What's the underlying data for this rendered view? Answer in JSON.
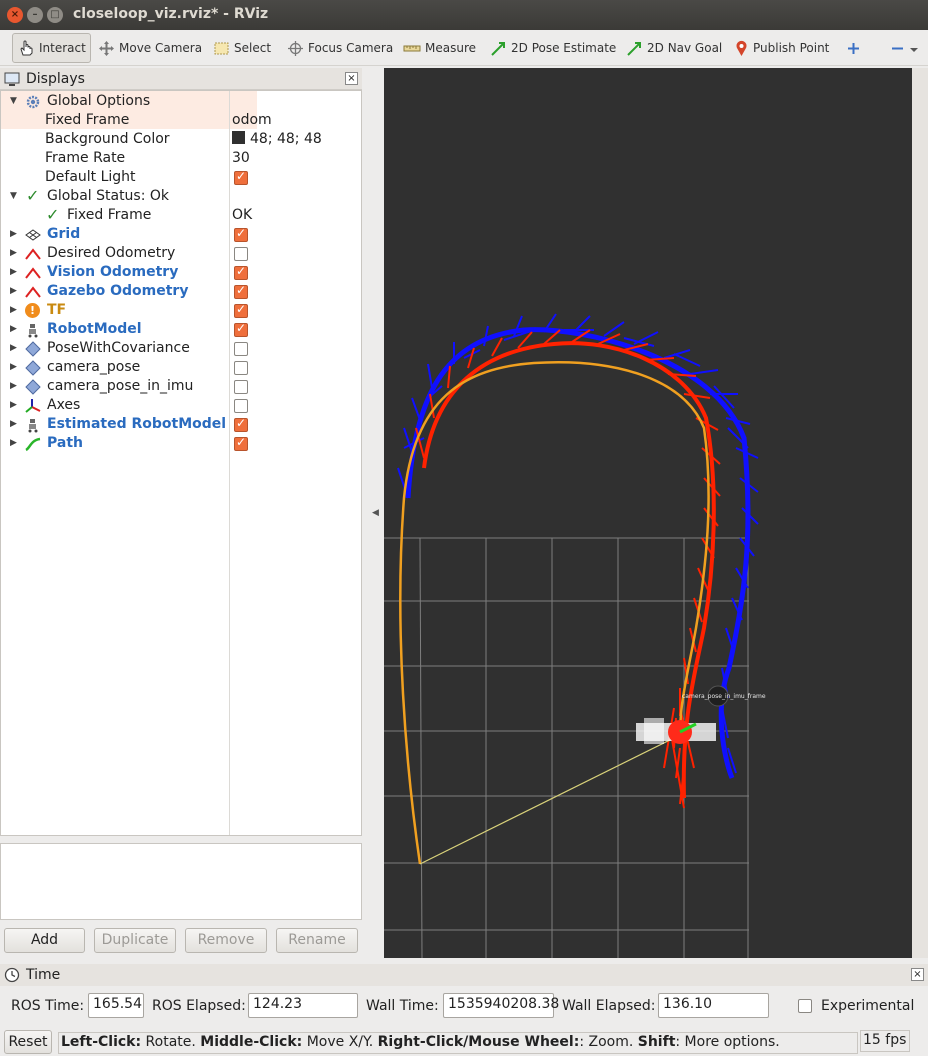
{
  "window": {
    "title": "closeloop_viz.rviz* - RViz"
  },
  "toolbar": {
    "interact": "Interact",
    "move_camera": "Move Camera",
    "select": "Select",
    "focus_camera": "Focus Camera",
    "measure": "Measure",
    "pose_estimate": "2D Pose Estimate",
    "nav_goal": "2D Nav Goal",
    "publish_point": "Publish Point"
  },
  "displays": {
    "title": "Displays",
    "global_options": "Global Options",
    "fixed_frame_label": "Fixed Frame",
    "fixed_frame_value": "odom",
    "bg_color_label": "Background Color",
    "bg_color_value": "48; 48; 48",
    "frame_rate_label": "Frame Rate",
    "frame_rate_value": "30",
    "default_light_label": "Default Light",
    "global_status": "Global Status: Ok",
    "status_fixed_frame": "Fixed Frame",
    "status_fixed_frame_value": "OK",
    "items": [
      {
        "name": "Grid",
        "checked": true
      },
      {
        "name": "Desired Odometry",
        "checked": false
      },
      {
        "name": "Vision Odometry",
        "checked": true
      },
      {
        "name": "Gazebo Odometry",
        "checked": true
      },
      {
        "name": "TF",
        "checked": true
      },
      {
        "name": "RobotModel",
        "checked": true
      },
      {
        "name": "PoseWithCovariance",
        "checked": false
      },
      {
        "name": "camera_pose",
        "checked": false
      },
      {
        "name": "camera_pose_in_imu",
        "checked": false
      },
      {
        "name": "Axes",
        "checked": false
      },
      {
        "name": "Estimated RobotModel",
        "checked": true
      },
      {
        "name": "Path",
        "checked": true
      }
    ]
  },
  "buttons": {
    "add": "Add",
    "duplicate": "Duplicate",
    "remove": "Remove",
    "rename": "Rename"
  },
  "view": {
    "frame_label": "camera_pose_in_imu_frame"
  },
  "time": {
    "title": "Time",
    "ros_time_label": "ROS Time:",
    "ros_time": "165.54",
    "ros_elapsed_label": "ROS Elapsed:",
    "ros_elapsed": "124.23",
    "wall_time_label": "Wall Time:",
    "wall_time": "1535940208.38",
    "wall_elapsed_label": "Wall Elapsed:",
    "wall_elapsed": "136.10",
    "experimental": "Experimental"
  },
  "status": {
    "reset": "Reset",
    "left_click": "Left-Click:",
    "left_click_desc": " Rotate. ",
    "middle_click": "Middle-Click:",
    "middle_click_desc": " Move X/Y. ",
    "right_click": "Right-Click/Mouse Wheel:",
    "right_click_desc": ": Zoom. ",
    "shift": "Shift",
    "shift_desc": ": More options.",
    "fps": "15 fps"
  },
  "colors": {
    "background": "#303030",
    "vision_odometry": "#ff2200",
    "gazebo_odometry": "#1010ff",
    "path": "#f0a020",
    "accent_checkbox": "#ef6f3c"
  }
}
